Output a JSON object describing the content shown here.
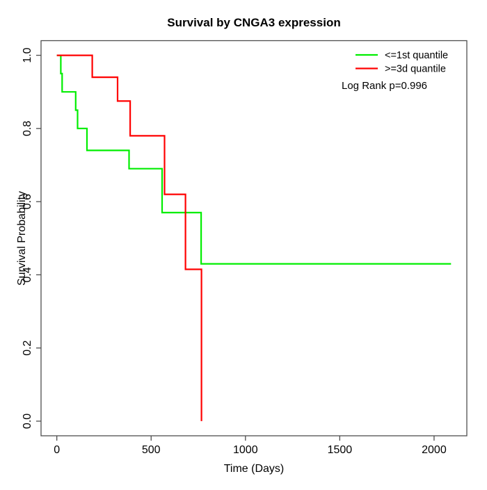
{
  "figure": {
    "background": "#ffffff",
    "border_color": "#4d4d4d"
  },
  "chart_data": {
    "type": "line",
    "subtype": "kaplan-meier-step",
    "title": "Survival by CNGA3 expression",
    "xlabel": "Time (Days)",
    "ylabel": "Survival Probability",
    "xlim": [
      0,
      2090
    ],
    "ylim": [
      0.0,
      1.0
    ],
    "axis_padding_fraction": 0.04,
    "grid": false,
    "x_ticks": [
      {
        "value": 0,
        "label": "0"
      },
      {
        "value": 500,
        "label": "500"
      },
      {
        "value": 1000,
        "label": "1000"
      },
      {
        "value": 1500,
        "label": "1500"
      },
      {
        "value": 2000,
        "label": "2000"
      }
    ],
    "y_ticks": [
      {
        "value": 0.0,
        "label": "0.0"
      },
      {
        "value": 0.2,
        "label": "0.2"
      },
      {
        "value": 0.4,
        "label": "0.4"
      },
      {
        "value": 0.6,
        "label": "0.6"
      },
      {
        "value": 0.8,
        "label": "0.8"
      },
      {
        "value": 1.0,
        "label": "1.0"
      }
    ],
    "legend_position": "top-right",
    "annotation": "Log Rank p=0.996",
    "series": [
      {
        "name": "<=1st quantile",
        "color": "#00ee00",
        "points": [
          [
            0,
            1.0
          ],
          [
            21,
            1.0
          ],
          [
            21,
            0.95
          ],
          [
            28,
            0.95
          ],
          [
            28,
            0.9
          ],
          [
            100,
            0.9
          ],
          [
            100,
            0.85
          ],
          [
            110,
            0.85
          ],
          [
            110,
            0.8
          ],
          [
            160,
            0.8
          ],
          [
            160,
            0.74
          ],
          [
            383,
            0.74
          ],
          [
            383,
            0.69
          ],
          [
            558,
            0.69
          ],
          [
            558,
            0.57
          ],
          [
            765,
            0.57
          ],
          [
            765,
            0.43
          ],
          [
            2090,
            0.43
          ]
        ]
      },
      {
        "name": ">=3d quantile",
        "color": "#ff0000",
        "points": [
          [
            0,
            1.0
          ],
          [
            188,
            1.0
          ],
          [
            188,
            0.94
          ],
          [
            322,
            0.94
          ],
          [
            322,
            0.875
          ],
          [
            389,
            0.875
          ],
          [
            389,
            0.78
          ],
          [
            571,
            0.78
          ],
          [
            571,
            0.62
          ],
          [
            682,
            0.62
          ],
          [
            682,
            0.415
          ],
          [
            767,
            0.415
          ],
          [
            767,
            0.0
          ]
        ]
      }
    ]
  }
}
